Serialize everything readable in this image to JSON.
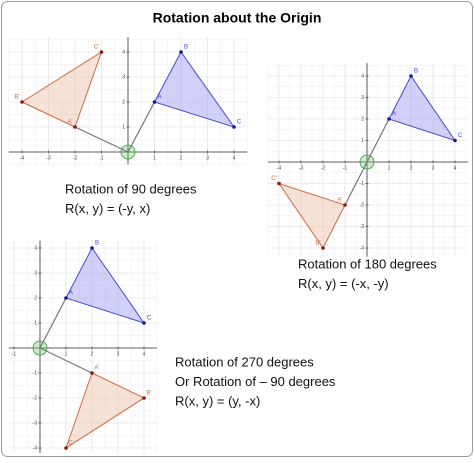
{
  "title": "Rotation about the Origin",
  "panels": [
    {
      "caption": [
        "Rotation of 90 degrees",
        "R(x, y) = (-y, x)"
      ],
      "xticks": [
        -4,
        -3,
        -2,
        -1,
        1,
        2,
        3,
        4
      ],
      "yticks": [
        1,
        2,
        3,
        4
      ],
      "original": [
        {
          "label": "A",
          "x": 1,
          "y": 2
        },
        {
          "label": "B",
          "x": 2,
          "y": 4
        },
        {
          "label": "C",
          "x": 4,
          "y": 1
        }
      ],
      "image": [
        {
          "label": "A'",
          "x": -2,
          "y": 1
        },
        {
          "label": "B'",
          "x": -4,
          "y": 2
        },
        {
          "label": "C'",
          "x": -1,
          "y": 4
        }
      ]
    },
    {
      "caption": [
        "Rotation of 180 degrees",
        "R(x, y) = (-x, -y)"
      ],
      "xticks": [
        -4,
        -3,
        -2,
        -1,
        1,
        2,
        3,
        4
      ],
      "yticks": [
        -4,
        -3,
        -2,
        -1,
        1,
        2,
        3,
        4
      ],
      "original": [
        {
          "label": "A",
          "x": 1,
          "y": 2
        },
        {
          "label": "B",
          "x": 2,
          "y": 4
        },
        {
          "label": "C",
          "x": 4,
          "y": 1
        }
      ],
      "image": [
        {
          "label": "A'",
          "x": -1,
          "y": -2
        },
        {
          "label": "B'",
          "x": -2,
          "y": -4
        },
        {
          "label": "C'",
          "x": -4,
          "y": -1
        }
      ]
    },
    {
      "caption": [
        "Rotation of 270 degrees",
        "Or Rotation of – 90 degrees",
        "R(x, y) = (y, -x)"
      ],
      "xticks": [
        -1,
        1,
        2,
        3,
        4
      ],
      "yticks": [
        -4,
        -3,
        -2,
        -1,
        1,
        2,
        3,
        4
      ],
      "original": [
        {
          "label": "A",
          "x": 1,
          "y": 2
        },
        {
          "label": "B",
          "x": 2,
          "y": 4
        },
        {
          "label": "C",
          "x": 4,
          "y": 1
        }
      ],
      "image": [
        {
          "label": "A'",
          "x": 2,
          "y": -1
        },
        {
          "label": "B'",
          "x": 4,
          "y": -2
        },
        {
          "label": "C'",
          "x": 1,
          "y": -4
        }
      ]
    }
  ]
}
